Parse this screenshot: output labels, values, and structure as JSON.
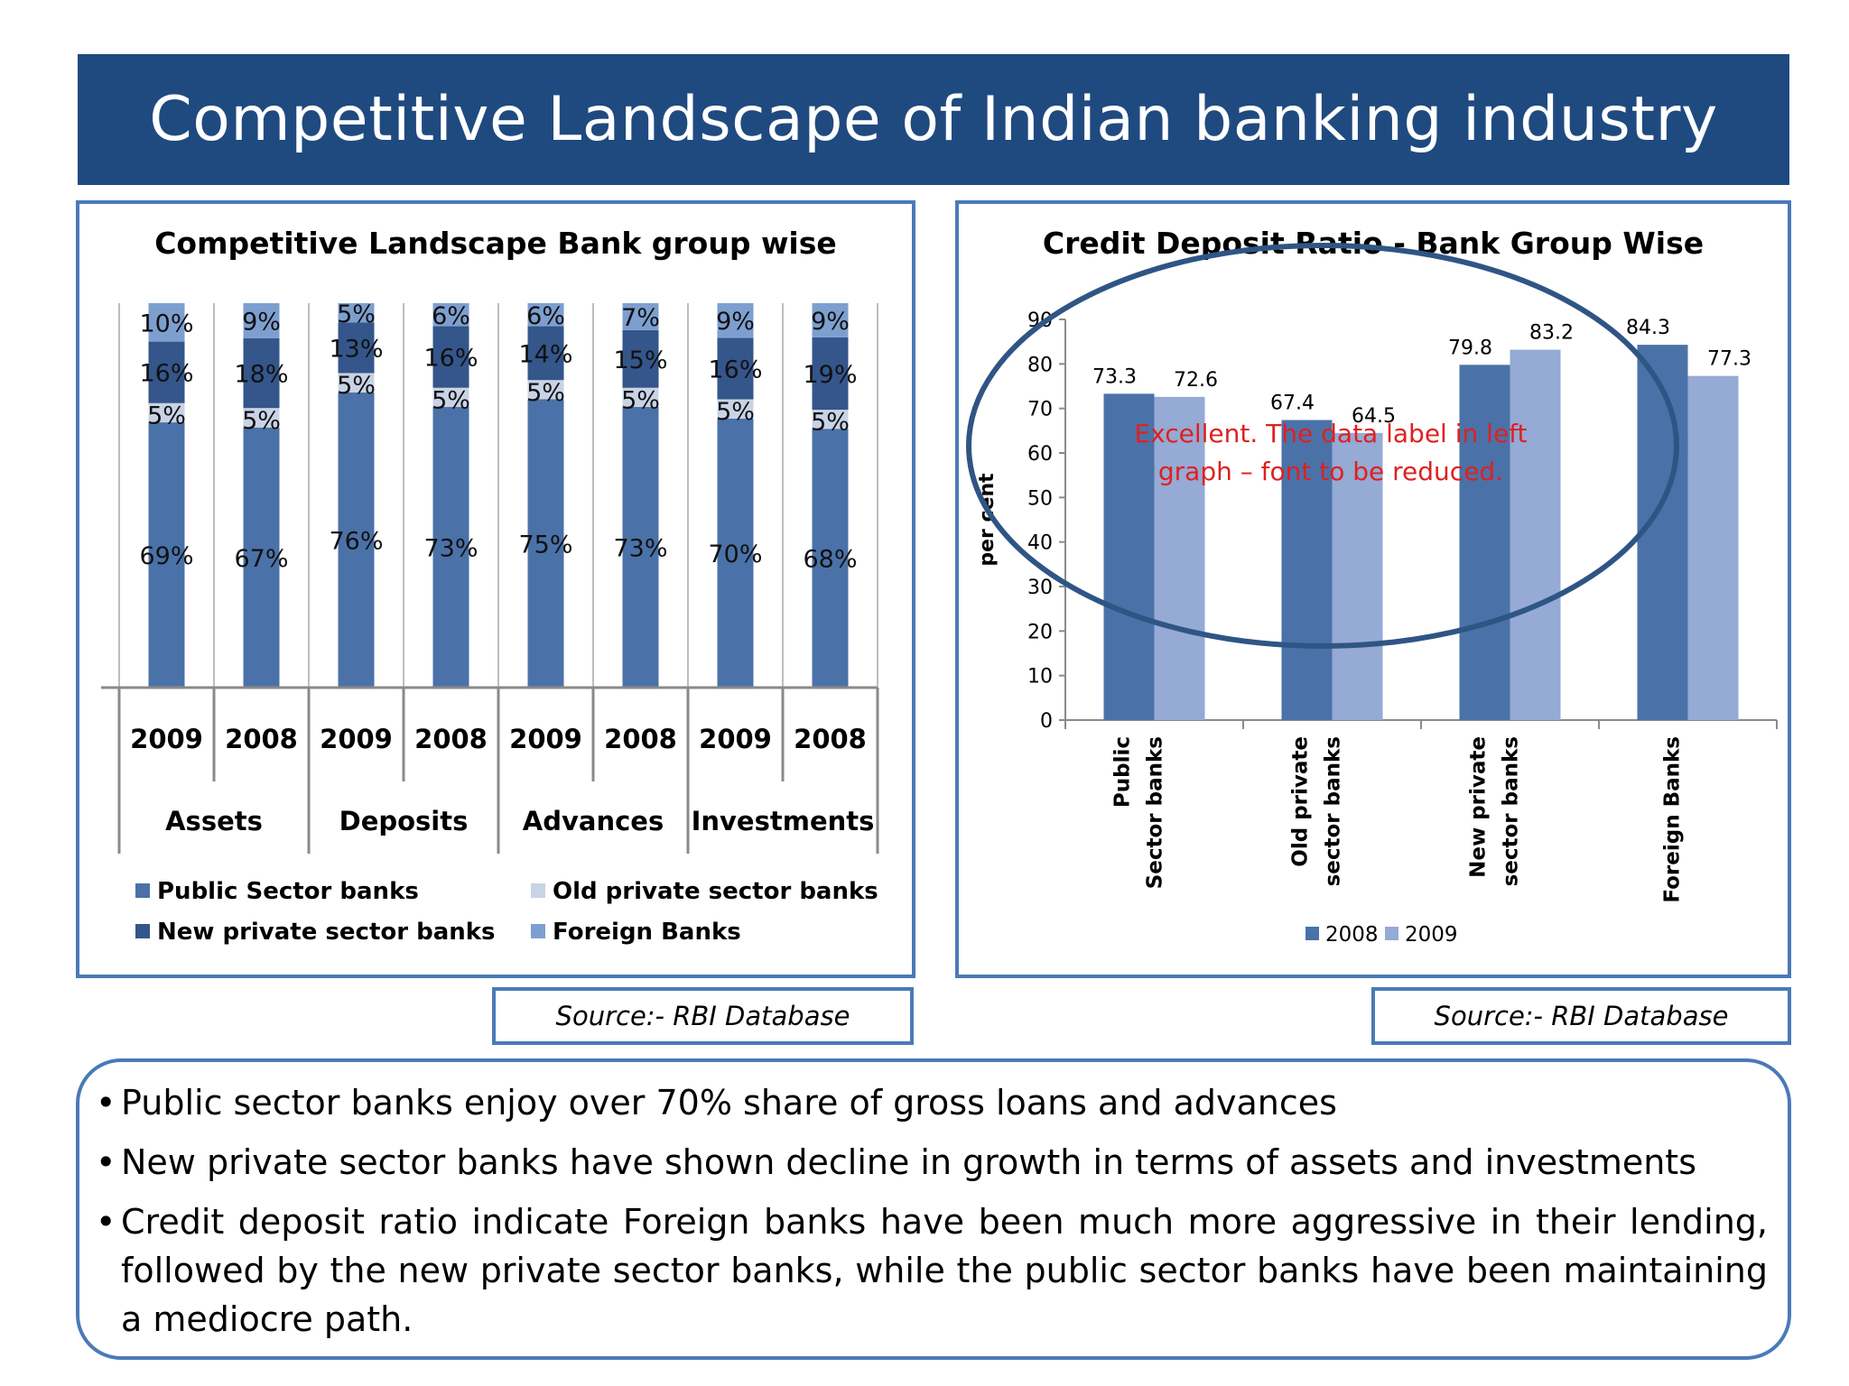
{
  "slide_title": "Competitive Landscape of Indian banking industry",
  "colors": {
    "header_bg": "#1f4a80",
    "public": "#4a72a8",
    "old_private": "#c9d3e6",
    "new_private": "#34568a",
    "foreign": "#7d9fd0",
    "series_2008": "#4a72a8",
    "series_2009": "#95aad4",
    "annotation": "#e02020",
    "border": "#4a7ab8"
  },
  "left_source": "Source:- RBI Database",
  "right_source": "Source:- RBI Database",
  "bullets": [
    "Public sector banks enjoy over 70% share of gross loans and advances",
    "New private sector banks have shown decline in growth in terms of assets and investments",
    "Credit deposit ratio indicate Foreign banks have been much more aggressive in their lending, followed by the new private sector banks, while the public sector banks have been maintaining a mediocre path."
  ],
  "chart_data": [
    {
      "type": "bar",
      "stacked": true,
      "title": "Competitive Landscape Bank group wise",
      "groups": [
        "Assets",
        "Deposits",
        "Advances",
        "Investments"
      ],
      "categories": [
        "2009",
        "2008",
        "2009",
        "2008",
        "2009",
        "2008",
        "2009",
        "2008"
      ],
      "series": [
        {
          "name": "Public Sector banks",
          "values": [
            69,
            67,
            76,
            73,
            75,
            73,
            70,
            68
          ],
          "labels": [
            "69%",
            "67%",
            "76%",
            "73%",
            "75%",
            "73%",
            "70%",
            "68%"
          ]
        },
        {
          "name": "Old private sector banks",
          "values": [
            5,
            5,
            5,
            5,
            5,
            5,
            5,
            5
          ],
          "labels": [
            "5%",
            "5%",
            "5%",
            "5%",
            "5%",
            "5%",
            "5%",
            "5%"
          ]
        },
        {
          "name": "New private sector banks",
          "values": [
            16,
            18,
            13,
            16,
            14,
            15,
            16,
            19
          ],
          "labels": [
            "16%",
            "18%",
            "13%",
            "16%",
            "14%",
            "15%",
            "16%",
            "19%"
          ]
        },
        {
          "name": "Foreign Banks",
          "values": [
            10,
            9,
            5,
            6,
            6,
            7,
            9,
            9
          ],
          "labels": [
            "10%",
            "9%",
            "5%",
            "6%",
            "6%",
            "7%",
            "9%",
            "9%"
          ]
        }
      ],
      "legend": [
        "Public Sector banks",
        "Old private sector banks",
        "New private sector banks",
        "Foreign Banks"
      ],
      "legend_position": "bottom"
    },
    {
      "type": "bar",
      "title": "Credit Deposit Ratio - Bank Group Wise",
      "categories": [
        [
          "Public",
          "Sector banks"
        ],
        [
          "Old private",
          "sector banks"
        ],
        [
          "New private",
          "sector banks"
        ],
        [
          "Foreign Banks"
        ]
      ],
      "series": [
        {
          "name": "2008",
          "values": [
            73.3,
            67.4,
            79.8,
            84.3
          ]
        },
        {
          "name": "2009",
          "values": [
            72.6,
            64.5,
            83.2,
            77.3
          ]
        }
      ],
      "ylabel": "per cent",
      "ylim": [
        0,
        90
      ],
      "yticks": [
        "0",
        "10",
        "20",
        "30",
        "40",
        "50",
        "60",
        "70",
        "80",
        "90"
      ],
      "legend_position": "bottom",
      "annotation": [
        "Excellent.  The data label in left",
        "graph – font to be reduced."
      ]
    }
  ]
}
